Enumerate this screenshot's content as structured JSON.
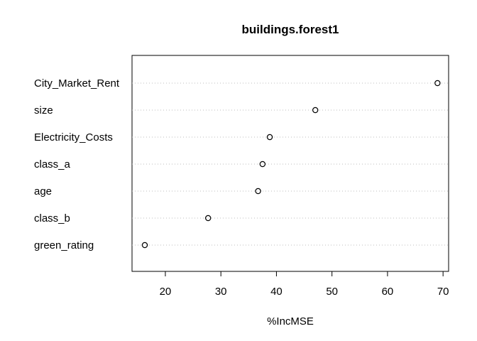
{
  "chart_data": {
    "type": "scatter",
    "subtype": "dotchart",
    "title": "buildings.forest1",
    "xlabel": "%IncMSE",
    "ylabel": "",
    "xlim": [
      14,
      71
    ],
    "xticks": [
      20,
      30,
      40,
      50,
      60,
      70
    ],
    "grid": "dotted horizontal",
    "legend": "none",
    "categories": [
      "City_Market_Rent",
      "size",
      "Electricity_Costs",
      "class_a",
      "age",
      "class_b",
      "green_rating"
    ],
    "values": [
      69.0,
      47.0,
      38.8,
      37.5,
      36.7,
      27.7,
      16.3
    ]
  },
  "colors": {
    "axis": "#000000",
    "grid": "#bebebe",
    "point": "#000000"
  }
}
